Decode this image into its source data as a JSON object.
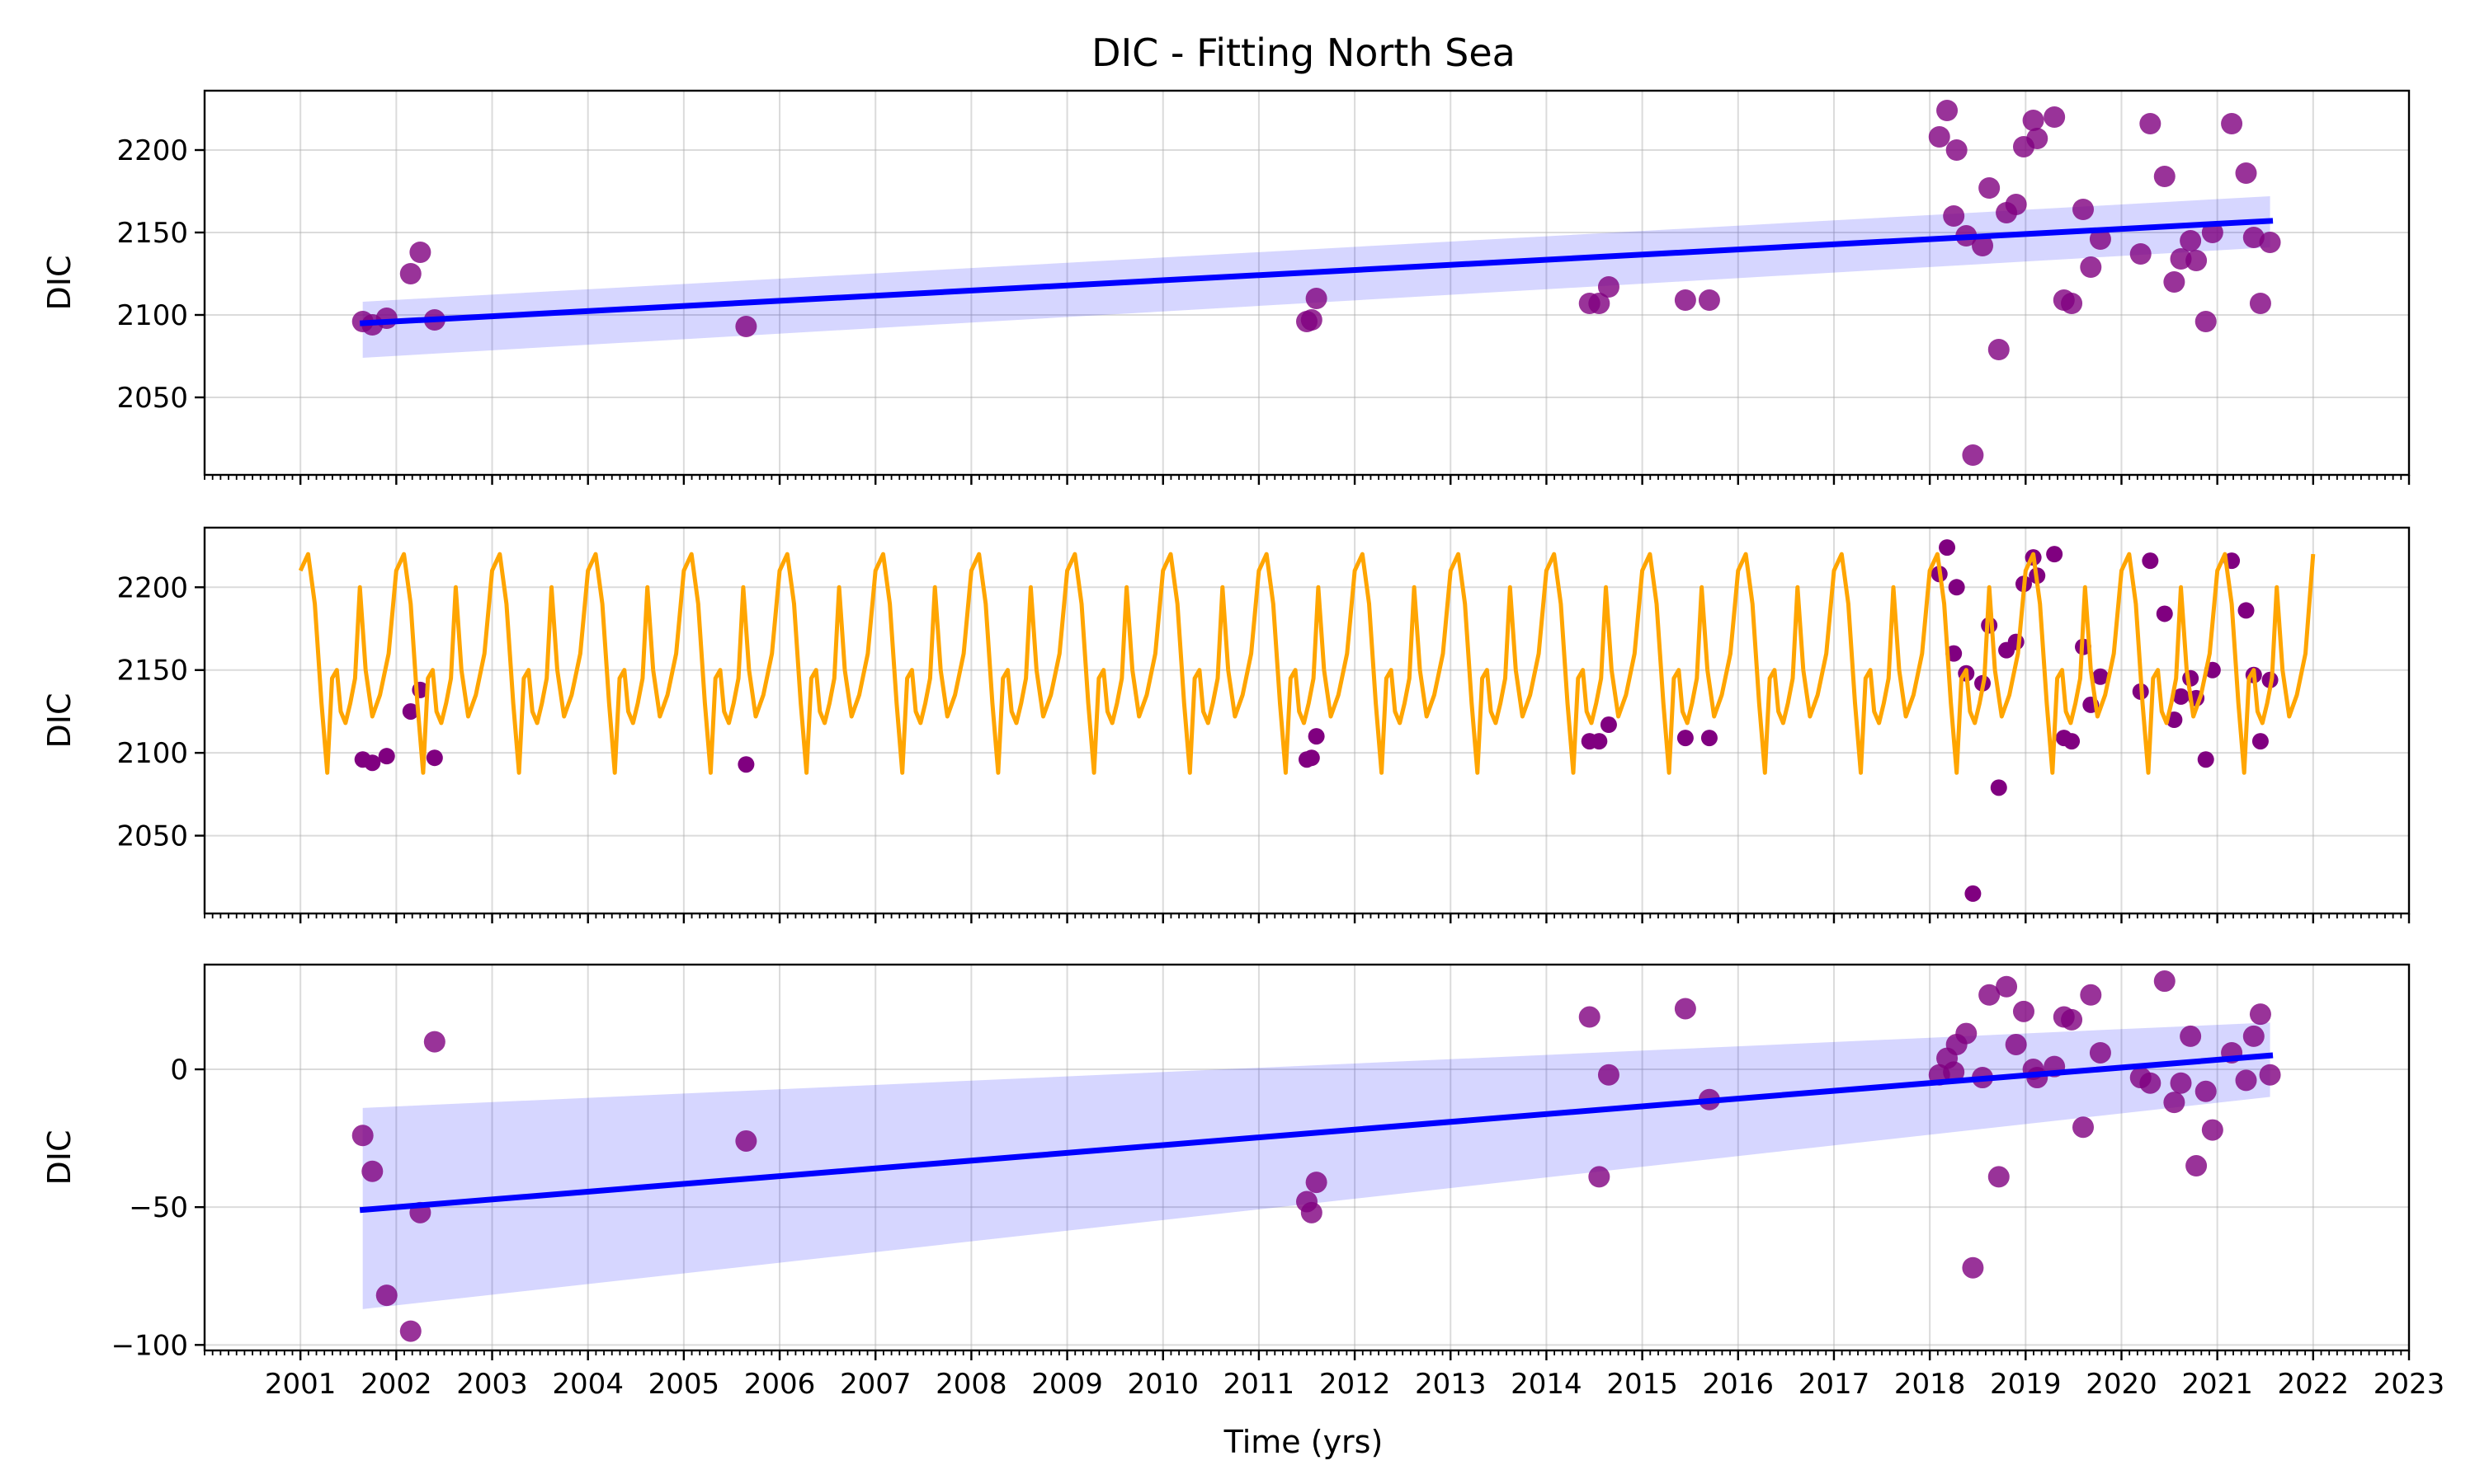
{
  "title": "DIC - Fitting North Sea",
  "xlabel": "Time (yrs)",
  "x_ticks": [
    2001,
    2002,
    2003,
    2004,
    2005,
    2006,
    2007,
    2008,
    2009,
    2010,
    2011,
    2012,
    2013,
    2014,
    2015,
    2016,
    2017,
    2018,
    2019,
    2020,
    2021,
    2022,
    2023
  ],
  "x_range": [
    2000.0,
    2023.0
  ],
  "colors": {
    "points": "#800080",
    "trend": "#0000ff",
    "band": "#0000ff",
    "seasonal": "#ffa500"
  },
  "observations": {
    "x": [
      2001.65,
      2001.75,
      2001.9,
      2002.15,
      2002.25,
      2002.4,
      2005.65,
      2011.5,
      2011.55,
      2011.6,
      2014.45,
      2014.55,
      2014.65,
      2015.45,
      2015.7,
      2018.1,
      2018.18,
      2018.28,
      2018.38,
      2018.45,
      2018.55,
      2018.62,
      2018.72,
      2018.8,
      2018.9,
      2018.98,
      2019.08,
      2019.12,
      2019.3,
      2019.4,
      2019.48,
      2019.6,
      2019.68,
      2019.78,
      2020.2,
      2020.3,
      2020.45,
      2020.55,
      2020.62,
      2020.72,
      2020.78,
      2020.88,
      2020.95,
      2021.15,
      2021.3,
      2021.38,
      2021.45,
      2021.55,
      2018.25
    ],
    "y": [
      2096,
      2094,
      2098,
      2125,
      2138,
      2097,
      2093,
      2096,
      2097,
      2110,
      2107,
      2107,
      2117,
      2109,
      2109,
      2208,
      2224,
      2200,
      2148,
      2015,
      2142,
      2177,
      2079,
      2162,
      2167,
      2202,
      2218,
      2207,
      2220,
      2109,
      2107,
      2164,
      2129,
      2146,
      2137,
      2216,
      2184,
      2120,
      2134,
      2145,
      2133,
      2096,
      2150,
      2216,
      2186,
      2147,
      2107,
      2144,
      2160
    ]
  },
  "chart_data": [
    {
      "type": "scatter",
      "ylabel": "DIC",
      "yticks": [
        2050,
        2100,
        2150,
        2200
      ],
      "ylim": [
        2003,
        2236
      ],
      "trend": {
        "x": [
          2001.65,
          2021.55
        ],
        "y": [
          2095,
          2157
        ]
      },
      "band": {
        "x": [
          2001.65,
          2021.55
        ],
        "lower": [
          2074,
          2141
        ],
        "upper": [
          2108,
          2172
        ]
      }
    },
    {
      "type": "line",
      "ylabel": "DIC",
      "yticks": [
        2050,
        2100,
        2150,
        2200
      ],
      "ylim": [
        2003,
        2236
      ],
      "seasonal_cycle": {
        "start_year": 2001,
        "end_year": 2022,
        "phase": [
          0.0,
          0.08,
          0.15,
          0.22,
          0.28,
          0.33,
          0.38,
          0.42,
          0.47,
          0.52,
          0.57,
          0.62,
          0.68,
          0.75,
          0.83,
          0.92
        ],
        "values": [
          2210,
          2220,
          2190,
          2130,
          2088,
          2145,
          2150,
          2125,
          2118,
          2130,
          2145,
          2200,
          2150,
          2122,
          2135,
          2160
        ]
      }
    },
    {
      "type": "scatter",
      "ylabel": "DIC",
      "yticks": [
        -100,
        -50,
        0
      ],
      "ylim": [
        -102,
        38
      ],
      "residuals": [
        -24,
        -37,
        -82,
        -95,
        -52,
        10,
        -26,
        -48,
        -52,
        -41,
        19,
        -39,
        -2,
        22,
        -11,
        -2,
        4,
        9,
        13,
        -72,
        -3,
        27,
        -39,
        30,
        9,
        21,
        0,
        -3,
        1,
        19,
        18,
        -21,
        27,
        6,
        -3,
        -5,
        32,
        -12,
        -5,
        12,
        -35,
        -8,
        -22,
        6,
        -4,
        12,
        20,
        -2,
        -1
      ],
      "trend": {
        "x": [
          2001.65,
          2021.55
        ],
        "y": [
          -51,
          5
        ]
      },
      "band": {
        "x": [
          2001.65,
          2021.55
        ],
        "lower": [
          -87,
          -10
        ],
        "upper": [
          -14,
          17
        ]
      }
    }
  ]
}
